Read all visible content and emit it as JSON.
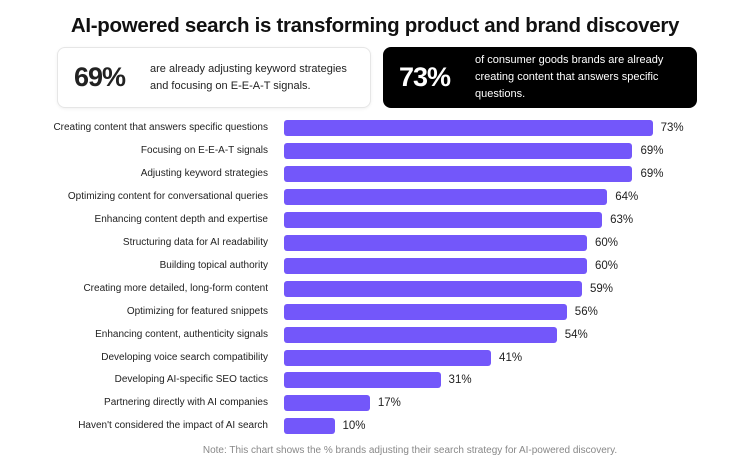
{
  "chart_data": {
    "type": "bar",
    "orientation": "horizontal",
    "title": "AI-powered search is transforming product and brand discovery",
    "categories": [
      "Creating content that answers specific questions",
      "Focusing on E-E-A-T signals",
      "Adjusting keyword strategies",
      "Optimizing content for conversational queries",
      "Enhancing content depth and expertise",
      "Structuring data for AI readability",
      "Building topical authority",
      "Creating more detailed, long-form content",
      "Optimizing for featured snippets",
      "Enhancing content, authenticity signals",
      "Developing voice search compatibility",
      "Developing AI-specific SEO tactics",
      "Partnering directly with AI companies",
      "Haven't considered the impact of AI search"
    ],
    "values": [
      73,
      69,
      69,
      64,
      63,
      60,
      60,
      59,
      56,
      54,
      41,
      31,
      17,
      10
    ],
    "value_labels": [
      "73%",
      "69%",
      "69%",
      "64%",
      "63%",
      "60%",
      "60%",
      "59%",
      "56%",
      "54%",
      "41%",
      "31%",
      "17%",
      "10%"
    ],
    "bar_color": "#7357fa",
    "grid": false,
    "legend": "none",
    "note": "Note: This chart shows the % brands adjusting their search strategy for AI-powered discovery."
  },
  "cards": [
    {
      "stat": "69%",
      "text": "are already adjusting keyword strategies and focusing on E-E-A-T signals.",
      "theme": "light"
    },
    {
      "stat": "73%",
      "text": "of consumer goods brands are already creating content that answers specific questions.",
      "theme": "dark"
    }
  ]
}
